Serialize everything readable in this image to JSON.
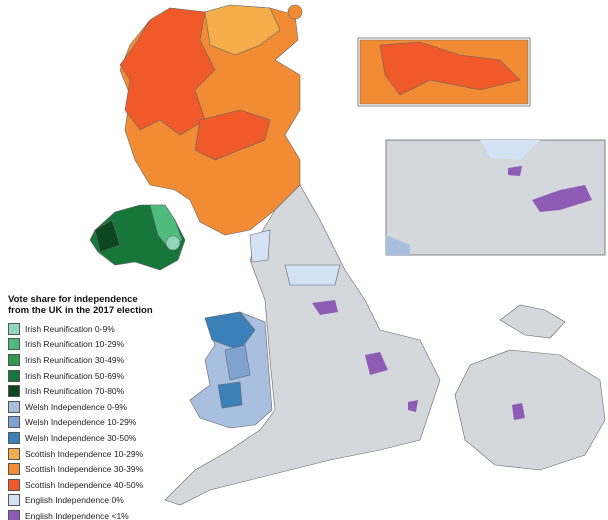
{
  "legend": {
    "title": "Vote share for independence from the UK in the 2017 election",
    "items": [
      {
        "label": "Irish Reunification 0-9%",
        "color": "#8fd6ba"
      },
      {
        "label": "Irish Reunification 10-29%",
        "color": "#4fbb7c"
      },
      {
        "label": "Irish Reunification 30-49%",
        "color": "#2e9a52"
      },
      {
        "label": "Irish Reunification 50-69%",
        "color": "#17763a"
      },
      {
        "label": "Irish Reunification 70-80%",
        "color": "#0c4720"
      },
      {
        "label": "Welsh Independence 0-9%",
        "color": "#a9bfe0"
      },
      {
        "label": "Welsh Independence 10-29%",
        "color": "#7fa3d1"
      },
      {
        "label": "Welsh Independence 30-50%",
        "color": "#3a80b9"
      },
      {
        "label": "Scottish Independence 10-29%",
        "color": "#f6ae4c"
      },
      {
        "label": "Scottish Independence 30-39%",
        "color": "#f28c34"
      },
      {
        "label": "Scottish Independence 40-50%",
        "color": "#f05a2a"
      },
      {
        "label": "English Independence 0%",
        "color": "#d3e3f5"
      },
      {
        "label": "English Independence <1%",
        "color": "#8e5bb5"
      }
    ]
  }
}
